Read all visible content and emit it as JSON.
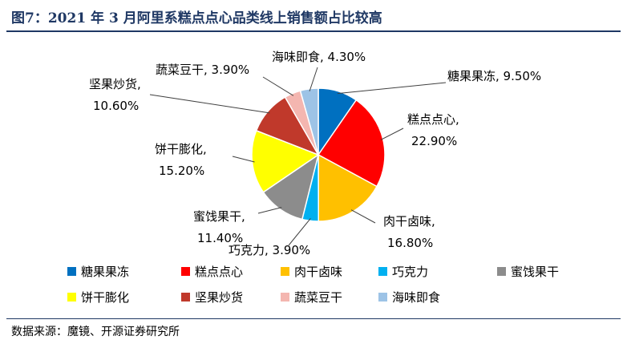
{
  "title": "图7：2021 年 3 月阿里系糕点点心品类线上销售额占比较高",
  "source": "数据来源：魔镜、开源证券研究所",
  "chart_data": {
    "type": "pie",
    "title": "图7：2021 年 3 月阿里系糕点点心品类线上销售额占比较高",
    "slices": [
      {
        "name": "糖果果冻",
        "value": 9.5,
        "label": "9.50%",
        "color": "#0070c0"
      },
      {
        "name": "糕点点心",
        "value": 22.9,
        "label": "22.90%",
        "color": "#ff0000"
      },
      {
        "name": "肉干卤味",
        "value": 16.8,
        "label": "16.80%",
        "color": "#ffc000"
      },
      {
        "name": "巧克力",
        "value": 3.9,
        "label": "3.90%",
        "color": "#00b0f0"
      },
      {
        "name": "蜜饯果干",
        "value": 11.4,
        "label": "11.40%",
        "color": "#8c8c8c"
      },
      {
        "name": "饼干膨化",
        "value": 15.2,
        "label": "15.20%",
        "color": "#ffff00"
      },
      {
        "name": "坚果炒货",
        "value": 10.6,
        "label": "10.60%",
        "color": "#c0392b"
      },
      {
        "name": "蔬菜豆干",
        "value": 3.9,
        "label": "3.90%",
        "color": "#f4b6b0"
      },
      {
        "name": "海味即食",
        "value": 4.3,
        "label": "4.30%",
        "color": "#9dc3e6"
      }
    ],
    "legend_position": "bottom"
  }
}
